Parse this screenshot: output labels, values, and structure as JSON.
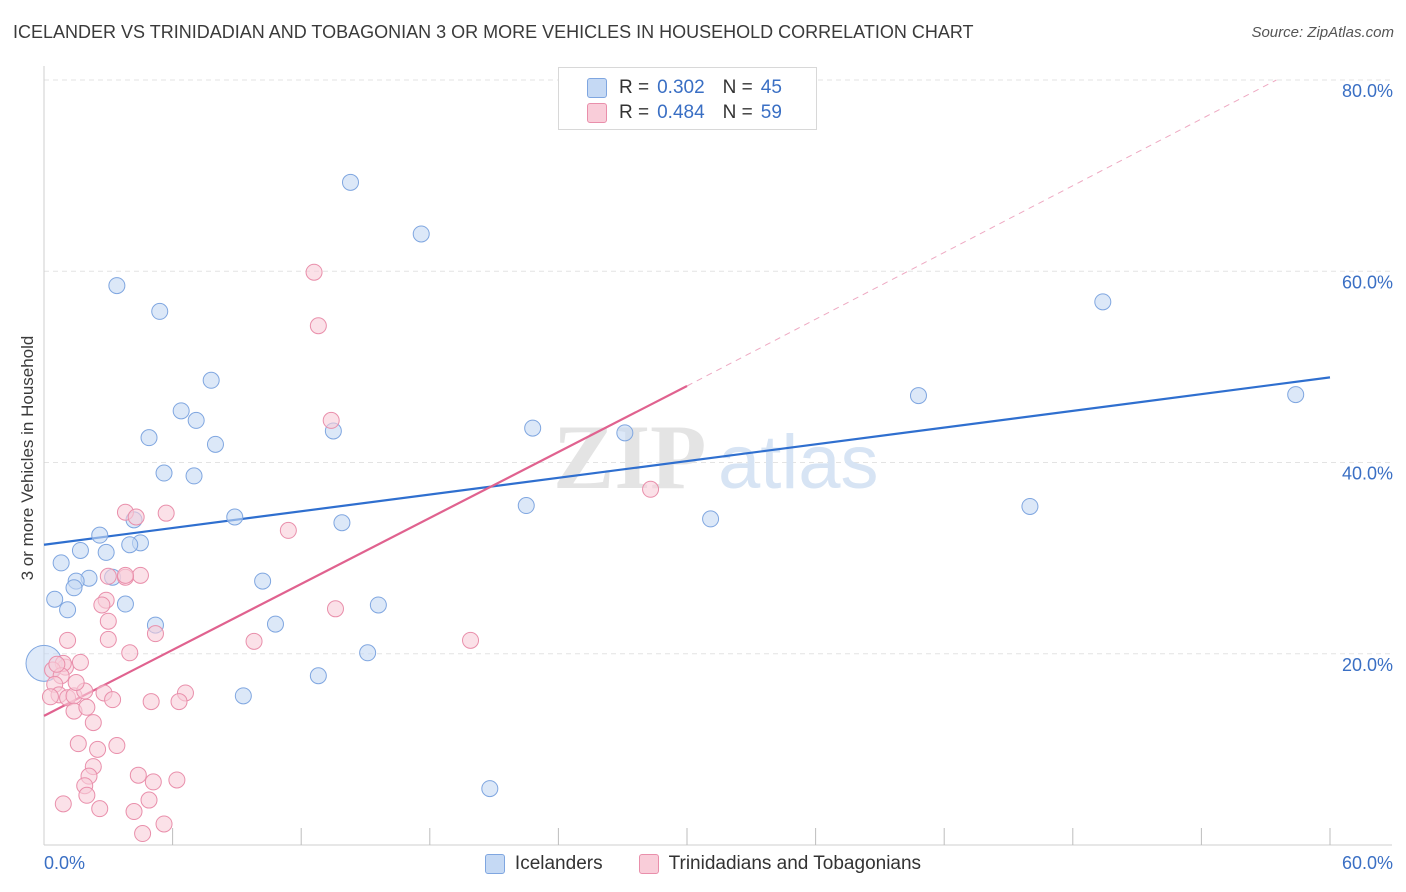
{
  "header": {
    "title": "ICELANDER VS TRINIDADIAN AND TOBAGONIAN 3 OR MORE VEHICLES IN HOUSEHOLD CORRELATION CHART",
    "source": "Source: ZipAtlas.com"
  },
  "legend_top": {
    "rows": [
      {
        "r_label": "R =",
        "r_value": "0.302",
        "n_label": "N =",
        "n_value": "45"
      },
      {
        "r_label": "R =",
        "r_value": "0.484",
        "n_label": "N =",
        "n_value": "59"
      }
    ]
  },
  "legend_bottom": {
    "items": [
      {
        "label": "Icelanders"
      },
      {
        "label": "Trinidadians and Tobagonians"
      }
    ]
  },
  "colors": {
    "blue_fill": "#c5d9f4",
    "blue_stroke": "#7fa6e0",
    "blue_line": "#2f6fcf",
    "pink_fill": "#f9cdd9",
    "pink_stroke": "#e98fab",
    "pink_line": "#e0628f",
    "grid": "#e3e3e3",
    "axis_label": "#3a6fc4"
  },
  "chart_data": {
    "type": "scatter",
    "title": "ICELANDER VS TRINIDADIAN AND TOBAGONIAN 3 OR MORE VEHICLES IN HOUSEHOLD CORRELATION CHART",
    "xlabel": "",
    "ylabel": "3 or more Vehicles in Household",
    "xlim": [
      0,
      60
    ],
    "ylim": [
      0,
      80
    ],
    "x_tick_labels": [
      {
        "value": 0,
        "label": "0.0%"
      },
      {
        "value": 60,
        "label": "60.0%"
      }
    ],
    "y_tick_labels": [
      {
        "value": 20,
        "label": "20.0%"
      },
      {
        "value": 40,
        "label": "40.0%"
      },
      {
        "value": 60,
        "label": "60.0%"
      },
      {
        "value": 80,
        "label": "80.0%"
      }
    ],
    "x_minor_ticks": [
      6,
      12,
      18,
      24,
      30,
      36,
      42,
      48,
      54,
      60
    ],
    "grid": true,
    "watermark": {
      "text1": "ZIP",
      "text2": "atlas"
    },
    "series": [
      {
        "name": "Icelanders",
        "color": "#7fa6e0",
        "R": 0.302,
        "N": 45,
        "points": [
          [
            14.3,
            69.3
          ],
          [
            17.6,
            63.9
          ],
          [
            3.4,
            58.5
          ],
          [
            5.4,
            55.8
          ],
          [
            7.8,
            48.6
          ],
          [
            6.4,
            45.4
          ],
          [
            7.1,
            44.4
          ],
          [
            13.5,
            43.3
          ],
          [
            4.9,
            42.6
          ],
          [
            8.0,
            41.9
          ],
          [
            5.6,
            38.9
          ],
          [
            7.0,
            38.6
          ],
          [
            8.9,
            34.3
          ],
          [
            4.2,
            34.0
          ],
          [
            13.9,
            33.7
          ],
          [
            2.6,
            32.4
          ],
          [
            4.5,
            31.6
          ],
          [
            4.0,
            31.4
          ],
          [
            1.7,
            30.8
          ],
          [
            2.9,
            30.6
          ],
          [
            0.8,
            29.5
          ],
          [
            2.1,
            27.9
          ],
          [
            1.5,
            27.6
          ],
          [
            3.2,
            28.0
          ],
          [
            10.2,
            27.6
          ],
          [
            1.4,
            26.9
          ],
          [
            0.5,
            25.7
          ],
          [
            3.8,
            25.2
          ],
          [
            15.6,
            25.1
          ],
          [
            1.1,
            24.6
          ],
          [
            5.2,
            23.0
          ],
          [
            10.8,
            23.1
          ],
          [
            15.1,
            20.1
          ],
          [
            12.8,
            17.7
          ],
          [
            9.3,
            15.6
          ],
          [
            22.8,
            43.6
          ],
          [
            27.1,
            43.1
          ],
          [
            22.5,
            35.5
          ],
          [
            31.1,
            34.1
          ],
          [
            40.8,
            47.0
          ],
          [
            46.0,
            35.4
          ],
          [
            49.4,
            56.8
          ],
          [
            58.4,
            47.1
          ],
          [
            20.8,
            5.9
          ],
          [
            0.0,
            19.0
          ]
        ]
      },
      {
        "name": "Trinidadians and Tobagonians",
        "color": "#e98fab",
        "R": 0.484,
        "N": 59,
        "points": [
          [
            12.6,
            59.9
          ],
          [
            12.8,
            54.3
          ],
          [
            13.4,
            44.4
          ],
          [
            28.3,
            37.2
          ],
          [
            3.8,
            34.8
          ],
          [
            4.3,
            34.3
          ],
          [
            5.7,
            34.7
          ],
          [
            11.4,
            32.9
          ],
          [
            3.0,
            28.1
          ],
          [
            4.5,
            28.2
          ],
          [
            3.8,
            28.0
          ],
          [
            2.9,
            25.6
          ],
          [
            2.7,
            25.1
          ],
          [
            13.6,
            24.7
          ],
          [
            3.0,
            23.4
          ],
          [
            5.2,
            22.1
          ],
          [
            9.8,
            21.3
          ],
          [
            19.9,
            21.4
          ],
          [
            1.1,
            21.4
          ],
          [
            3.0,
            21.5
          ],
          [
            4.0,
            20.1
          ],
          [
            1.0,
            18.6
          ],
          [
            1.7,
            19.1
          ],
          [
            0.9,
            19.0
          ],
          [
            0.4,
            18.3
          ],
          [
            0.8,
            17.7
          ],
          [
            0.5,
            16.8
          ],
          [
            0.7,
            15.7
          ],
          [
            0.3,
            15.5
          ],
          [
            1.1,
            15.4
          ],
          [
            1.4,
            15.6
          ],
          [
            1.9,
            16.1
          ],
          [
            2.8,
            15.9
          ],
          [
            3.2,
            15.2
          ],
          [
            6.6,
            15.9
          ],
          [
            6.3,
            15.0
          ],
          [
            5.0,
            15.0
          ],
          [
            1.4,
            14.0
          ],
          [
            2.0,
            14.4
          ],
          [
            2.3,
            12.8
          ],
          [
            1.6,
            10.6
          ],
          [
            2.5,
            10.0
          ],
          [
            3.4,
            10.4
          ],
          [
            2.3,
            8.2
          ],
          [
            4.4,
            7.3
          ],
          [
            2.1,
            7.2
          ],
          [
            5.1,
            6.6
          ],
          [
            6.2,
            6.8
          ],
          [
            1.9,
            6.2
          ],
          [
            0.9,
            4.3
          ],
          [
            2.0,
            5.2
          ],
          [
            2.6,
            3.8
          ],
          [
            4.2,
            3.5
          ],
          [
            4.9,
            4.7
          ],
          [
            5.6,
            2.2
          ],
          [
            4.6,
            1.2
          ],
          [
            3.8,
            28.2
          ],
          [
            1.5,
            17.0
          ],
          [
            0.6,
            18.9
          ]
        ]
      }
    ],
    "trend_lines": [
      {
        "series": "Icelanders",
        "x0": 0,
        "y0": 31.4,
        "x1": 60,
        "y1": 48.9,
        "style": "solid"
      },
      {
        "series": "Trinidadians and Tobagonians",
        "x0": 0,
        "y0": 13.5,
        "x1": 30,
        "y1": 48.0,
        "style": "solid"
      },
      {
        "series": "Trinidadians and Tobagonians",
        "x0": 30,
        "y0": 48.0,
        "x1": 57.5,
        "y1": 80.0,
        "style": "dashed"
      }
    ]
  }
}
